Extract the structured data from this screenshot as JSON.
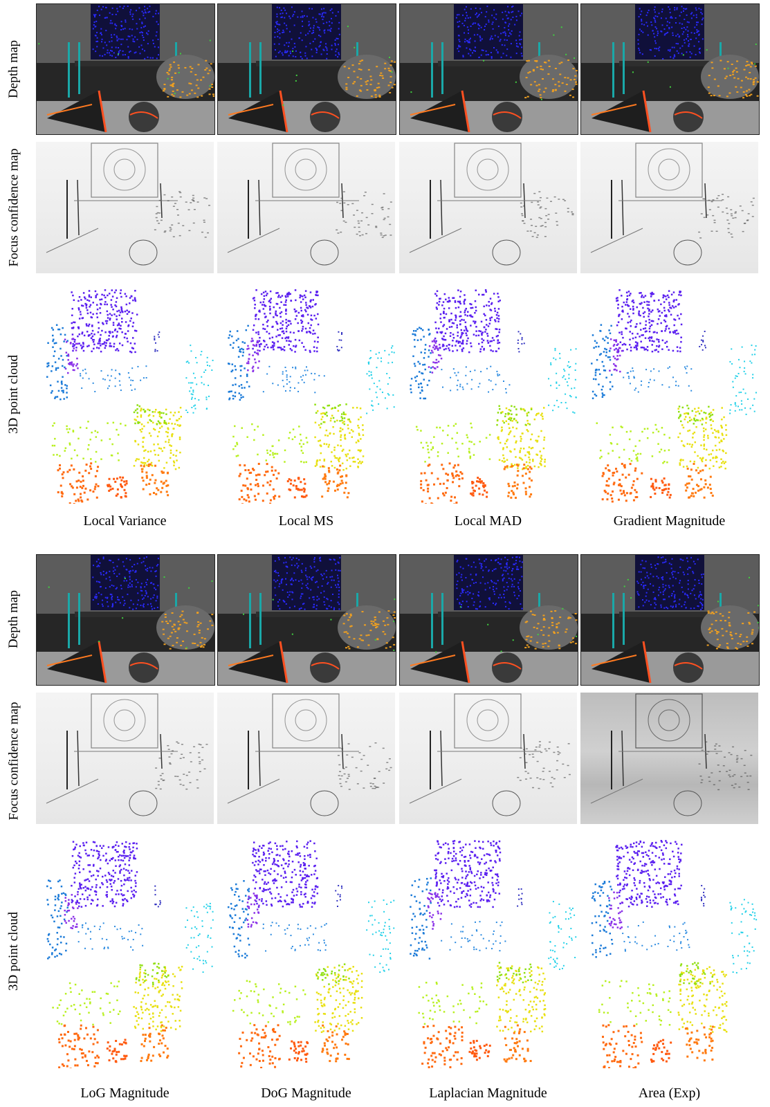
{
  "row_labels": {
    "depth": "Depth map",
    "confidence": "Focus confidence map",
    "cloud": "3D point cloud"
  },
  "top_captions": [
    "Local Variance",
    "Local MS",
    "Local MAD",
    "Gradient Magnitude"
  ],
  "bottom_captions": [
    "LoG Magnitude",
    "DoG Magnitude",
    "Laplacian Magnitude",
    "Area (Exp)"
  ]
}
